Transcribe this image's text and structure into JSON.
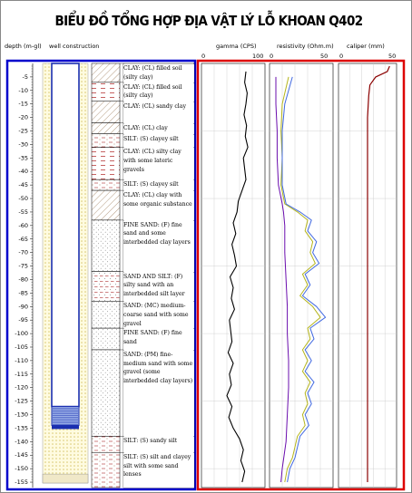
{
  "title": "BIỂU ĐỒ TỔNG HỢP ĐỊA VẬT LÝ LỖ KHOAN Q402",
  "headers": {
    "depth": "depth (m-gl)",
    "well": "well construction",
    "gamma": "gamma (CPS)",
    "resistivity": "resistivity (Ohm.m)",
    "caliper": "caliper   (mm)"
  },
  "scales": {
    "gamma": [
      "0",
      "100"
    ],
    "resistivity": [
      "0",
      "50"
    ],
    "caliper": [
      "0",
      "50"
    ]
  },
  "depth_ticks": [
    "-5",
    "-10",
    "-15",
    "-20",
    "-25",
    "-30",
    "-35",
    "-40",
    "-45",
    "-50",
    "-55",
    "-60",
    "-65",
    "-70",
    "-75",
    "-80",
    "-85",
    "-90",
    "-95",
    "-100",
    "-105",
    "-110",
    "-115",
    "-120",
    "-125",
    "-130",
    "-135",
    "-140",
    "-145",
    "-150",
    "-155"
  ],
  "lithology": [
    {
      "top": 0,
      "bottom": 7,
      "text": "CLAY: (CL) filled soil (silty clay)",
      "pattern": "clay-hatch"
    },
    {
      "top": 7,
      "bottom": 14,
      "text": "CLAY: (CL) filled soil (silty clay)",
      "pattern": "clay-dash"
    },
    {
      "top": 14,
      "bottom": 22,
      "text": "CLAY: (CL) sandy clay",
      "pattern": "clay-hatch"
    },
    {
      "top": 22,
      "bottom": 26,
      "text": "CLAY: (CL) clay",
      "pattern": "clay-hatch"
    },
    {
      "top": 26,
      "bottom": 31,
      "text": "SILT: (S) clayey silt",
      "pattern": "silt"
    },
    {
      "top": 31,
      "bottom": 43,
      "text": "CLAY: (CL) silty clay with some lateric gravels",
      "pattern": "clay-dash"
    },
    {
      "top": 43,
      "bottom": 47,
      "text": "SILT: (S) clayey silt",
      "pattern": "silt"
    },
    {
      "top": 47,
      "bottom": 58,
      "text": "CLAY: (CL) clay with some organic substance",
      "pattern": "clay-hatch"
    },
    {
      "top": 58,
      "bottom": 77,
      "text": "FINE SAND: (F) fine sand and some interbedded clay layers",
      "pattern": "sand"
    },
    {
      "top": 77,
      "bottom": 88,
      "text": "SAND AND SILT: (F) silty sand with an interbedded silt layer",
      "pattern": "sand-silt"
    },
    {
      "top": 88,
      "bottom": 98,
      "text": "SAND: (MC) medium-coarse sand with some gravel",
      "pattern": "sand"
    },
    {
      "top": 98,
      "bottom": 106,
      "text": "FINE SAND: (F) fine sand",
      "pattern": "sand"
    },
    {
      "top": 106,
      "bottom": 138,
      "text": "SAND: (PM) fine-medium sand with some gravel (some interbedded clay layers)",
      "pattern": "sand"
    },
    {
      "top": 138,
      "bottom": 144,
      "text": "SILT: (S) sandy silt",
      "pattern": "silt"
    },
    {
      "top": 144,
      "bottom": 157,
      "text": "SILT: (S) silt and clayey silt with some sand lenses",
      "pattern": "silt"
    }
  ],
  "chart_data": {
    "type": "line",
    "title": "BIỂU ĐỒ TỔNG HỢP ĐỊA VẬT LÝ LỖ KHOAN Q402",
    "depth_axis": {
      "label": "depth (m-gl)",
      "range": [
        0,
        -157
      ],
      "ticks": [
        -5,
        -10,
        -15,
        -20,
        -25,
        -30,
        -35,
        -40,
        -45,
        -50,
        -55,
        -60,
        -65,
        -70,
        -75,
        -80,
        -85,
        -90,
        -95,
        -100,
        -105,
        -110,
        -115,
        -120,
        -125,
        -130,
        -135,
        -140,
        -145,
        -150,
        -155
      ]
    },
    "tracks": [
      {
        "name": "gamma (CPS)",
        "xlim": [
          0,
          100
        ],
        "color": "#000000",
        "depth": [
          -3,
          -7,
          -11,
          -15,
          -19,
          -23,
          -27,
          -31,
          -35,
          -39,
          -43,
          -47,
          -51,
          -55,
          -59,
          -63,
          -67,
          -71,
          -75,
          -79,
          -83,
          -87,
          -91,
          -95,
          -99,
          -103,
          -107,
          -111,
          -115,
          -119,
          -123,
          -127,
          -131,
          -135,
          -139,
          -143,
          -147,
          -151,
          -155
        ],
        "values": [
          70,
          68,
          72,
          70,
          67,
          71,
          69,
          73,
          66,
          68,
          70,
          64,
          58,
          56,
          50,
          54,
          48,
          52,
          55,
          45,
          50,
          47,
          52,
          44,
          46,
          48,
          42,
          50,
          44,
          47,
          40,
          48,
          43,
          50,
          60,
          66,
          62,
          68,
          64
        ]
      },
      {
        "name": "resistivity (Ohm.m)",
        "xlim": [
          0,
          50
        ],
        "series": [
          {
            "name": "short normal",
            "color": "#6a0dad",
            "depth": [
              -5,
              -15,
              -25,
              -35,
              -45,
              -52,
              -55,
              -60,
              -70,
              -80,
              -90,
              -100,
              -110,
              -120,
              -130,
              -140,
              -150,
              -155
            ],
            "values": [
              5,
              5,
              6,
              6,
              7,
              10,
              11,
              12,
              12,
              13,
              14,
              14,
              15,
              15,
              14,
              13,
              10,
              9
            ]
          },
          {
            "name": "long normal",
            "color": "#b5b51c",
            "depth": [
              -5,
              -15,
              -25,
              -35,
              -45,
              -52,
              -55,
              -58,
              -62,
              -66,
              -70,
              -74,
              -78,
              -82,
              -86,
              -90,
              -94,
              -98,
              -102,
              -106,
              -110,
              -114,
              -118,
              -122,
              -126,
              -130,
              -134,
              -138,
              -142,
              -146,
              -150,
              -155
            ],
            "values": [
              15,
              10,
              9,
              10,
              9,
              12,
              22,
              30,
              28,
              34,
              32,
              36,
              26,
              30,
              24,
              34,
              40,
              30,
              32,
              26,
              30,
              26,
              32,
              28,
              30,
              26,
              28,
              22,
              20,
              18,
              14,
              12
            ]
          },
          {
            "name": "single point",
            "color": "#4169e1",
            "depth": [
              -5,
              -15,
              -25,
              -35,
              -45,
              -52,
              -55,
              -58,
              -62,
              -66,
              -70,
              -74,
              -78,
              -82,
              -86,
              -90,
              -94,
              -98,
              -102,
              -106,
              -110,
              -114,
              -118,
              -122,
              -126,
              -130,
              -134,
              -138,
              -142,
              -146,
              -150,
              -155
            ],
            "values": [
              18,
              12,
              10,
              10,
              10,
              13,
              24,
              33,
              30,
              37,
              34,
              39,
              28,
              32,
              26,
              37,
              44,
              32,
              35,
              28,
              33,
              28,
              35,
              30,
              33,
              28,
              31,
              24,
              22,
              20,
              16,
              14
            ]
          }
        ]
      },
      {
        "name": "caliper (mm)",
        "xlim": [
          0,
          50
        ],
        "color": "#8b0000",
        "depth": [
          -1,
          -3,
          -5,
          -8,
          -12,
          -20,
          -40,
          -60,
          -80,
          -100,
          -120,
          -140,
          -155
        ],
        "values": [
          44,
          42,
          32,
          27,
          26,
          25,
          25,
          25,
          25,
          25,
          25,
          25,
          25
        ]
      }
    ]
  }
}
